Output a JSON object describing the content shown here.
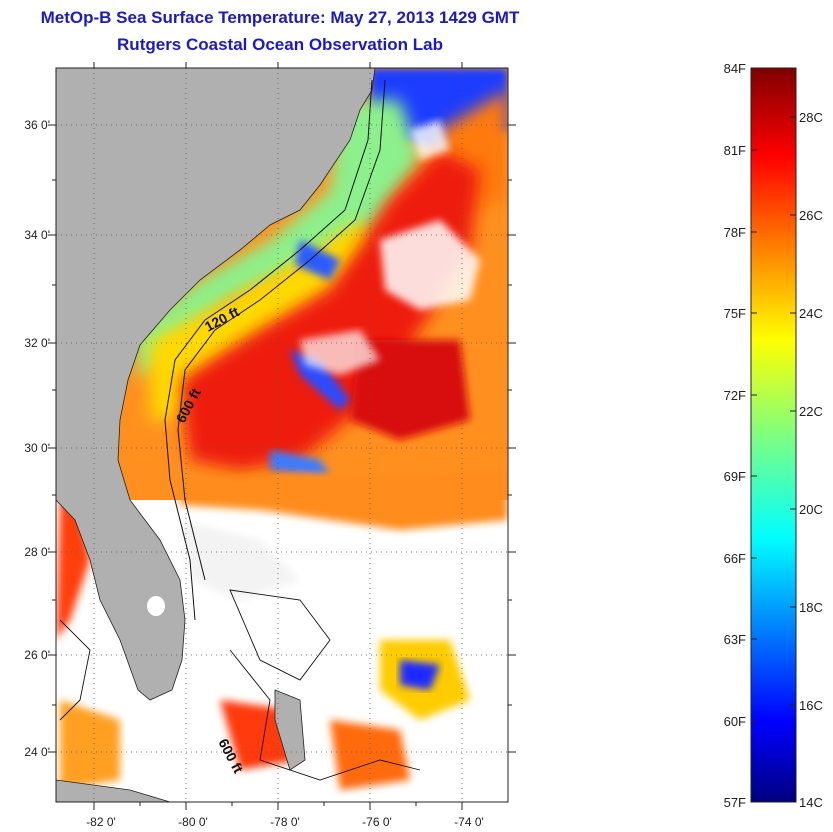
{
  "header": {
    "title": "MetOp-B Sea Surface Temperature:  May 27, 2013 1429 GMT",
    "subtitle": "Rutgers Coastal Ocean Observation Lab"
  },
  "map": {
    "lon_ticks": [
      "-82 0'",
      "-80 0'",
      "-78 0'",
      "-76 0'",
      "-74 0'"
    ],
    "lat_ticks": [
      "36 0'",
      "34 0'",
      "32 0'",
      "30 0'",
      "28 0'",
      "26 0'",
      "24 0'"
    ],
    "isobath_labels": [
      "120 ft",
      "600 ft",
      "600 ft"
    ],
    "colors": {
      "land": "#b0b0b0",
      "no_data": "#ffffff"
    }
  },
  "colorbar": {
    "f_labels": [
      "84F",
      "81F",
      "78F",
      "75F",
      "72F",
      "69F",
      "66F",
      "63F",
      "60F",
      "57F"
    ],
    "c_labels": [
      "28C",
      "26C",
      "24C",
      "22C",
      "20C",
      "18C",
      "16C",
      "14C"
    ],
    "colormap": "jet"
  }
}
